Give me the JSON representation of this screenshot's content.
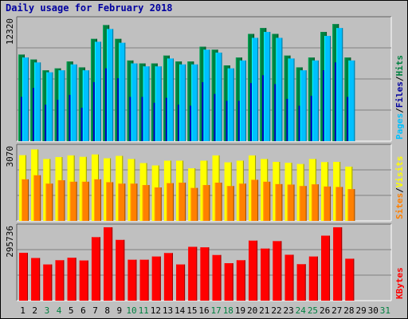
{
  "title": "Daily usage for February 2018",
  "colors": {
    "background": "#c0c0c0",
    "pages": "#00c0ff",
    "files": "#0000a0",
    "hits": "#008040",
    "visits": "#ffff00",
    "sites": "#ff8000",
    "kbytes": "#ff0000",
    "weekend_label": "#008040",
    "weekday_label": "#000000"
  },
  "chart_data": [
    {
      "type": "bar",
      "panel": "hits-files-pages",
      "ymax_label": "12320",
      "ylim": [
        0,
        12320
      ],
      "right_labels": [
        {
          "text": "Pages",
          "color": "#00c0ff"
        },
        {
          "text": "/",
          "color": "#000000"
        },
        {
          "text": "Files",
          "color": "#0000a0"
        },
        {
          "text": "/",
          "color": "#000000"
        },
        {
          "text": "Hits",
          "color": "#008040"
        }
      ],
      "categories": [
        "1",
        "2",
        "3",
        "4",
        "5",
        "6",
        "7",
        "8",
        "9",
        "10",
        "11",
        "12",
        "13",
        "14",
        "15",
        "16",
        "17",
        "18",
        "19",
        "20",
        "21",
        "22",
        "23",
        "24",
        "25",
        "26",
        "27",
        "28",
        "29",
        "30",
        "31"
      ],
      "series": [
        {
          "name": "Hits",
          "values": [
            8800,
            8300,
            7200,
            7400,
            8100,
            7500,
            10400,
            11800,
            10400,
            8200,
            7900,
            7900,
            8700,
            8100,
            8100,
            9600,
            9300,
            7700,
            8500,
            10900,
            11500,
            10900,
            8700,
            7500,
            8500,
            11100,
            11900,
            8500,
            null,
            null,
            null
          ]
        },
        {
          "name": "Files",
          "values": [
            4500,
            5400,
            3700,
            4200,
            4700,
            3400,
            6000,
            7400,
            6400,
            4500,
            4500,
            3900,
            4400,
            3700,
            3600,
            6000,
            4800,
            4100,
            4100,
            5900,
            6700,
            5800,
            4300,
            3600,
            4600,
            7200,
            8000,
            4500,
            null,
            null,
            null
          ]
        },
        {
          "name": "Pages",
          "values": [
            8500,
            8000,
            7000,
            7200,
            7800,
            7200,
            10100,
            11400,
            10000,
            7900,
            7600,
            7600,
            8400,
            7800,
            7800,
            9300,
            9000,
            7400,
            8200,
            10500,
            11100,
            10500,
            8400,
            7200,
            8200,
            10700,
            11500,
            8200,
            null,
            null,
            null
          ]
        }
      ]
    },
    {
      "type": "bar",
      "panel": "visits-sites",
      "ymax_label": "3070",
      "ylim": [
        0,
        3070
      ],
      "right_labels": [
        {
          "text": "Sites",
          "color": "#ff8000"
        },
        {
          "text": "/",
          "color": "#000000"
        },
        {
          "text": "Visits",
          "color": "#ffff00"
        }
      ],
      "categories": [
        "1",
        "2",
        "3",
        "4",
        "5",
        "6",
        "7",
        "8",
        "9",
        "10",
        "11",
        "12",
        "13",
        "14",
        "15",
        "16",
        "17",
        "18",
        "19",
        "20",
        "21",
        "22",
        "23",
        "24",
        "25",
        "26",
        "27",
        "28",
        "29",
        "30",
        "31"
      ],
      "series": [
        {
          "name": "Visits",
          "values": [
            2750,
            2990,
            2590,
            2670,
            2740,
            2680,
            2780,
            2620,
            2720,
            2590,
            2420,
            2320,
            2520,
            2520,
            2200,
            2520,
            2740,
            2450,
            2520,
            2740,
            2590,
            2470,
            2430,
            2380,
            2590,
            2460,
            2470,
            2270,
            null,
            null,
            null
          ]
        },
        {
          "name": "Sites",
          "values": [
            1740,
            1910,
            1560,
            1700,
            1640,
            1640,
            1740,
            1620,
            1560,
            1560,
            1500,
            1400,
            1580,
            1600,
            1380,
            1500,
            1600,
            1460,
            1560,
            1720,
            1640,
            1540,
            1520,
            1460,
            1530,
            1440,
            1420,
            1330,
            null,
            null,
            null
          ]
        }
      ]
    },
    {
      "type": "bar",
      "panel": "kbytes",
      "ymax_label": "295736",
      "ylim": [
        0,
        295736
      ],
      "right_labels": [
        {
          "text": "KBytes",
          "color": "#ff0000"
        }
      ],
      "categories": [
        "1",
        "2",
        "3",
        "4",
        "5",
        "6",
        "7",
        "8",
        "9",
        "10",
        "11",
        "12",
        "13",
        "14",
        "15",
        "16",
        "17",
        "18",
        "19",
        "20",
        "21",
        "22",
        "23",
        "24",
        "25",
        "26",
        "27",
        "28",
        "29",
        "30",
        "31"
      ],
      "series": [
        {
          "name": "KBytes",
          "values": [
            193000,
            172000,
            146000,
            163000,
            173000,
            162000,
            256000,
            295736,
            245000,
            165000,
            165000,
            178000,
            192000,
            146000,
            217000,
            215000,
            184000,
            151000,
            163000,
            242000,
            210000,
            240000,
            185000,
            147000,
            178000,
            262000,
            295736,
            169000,
            null,
            null,
            null
          ]
        }
      ]
    }
  ],
  "x_labels": {
    "weekend_days": [
      "3",
      "4",
      "10",
      "11",
      "17",
      "18",
      "24",
      "25",
      "31"
    ]
  }
}
